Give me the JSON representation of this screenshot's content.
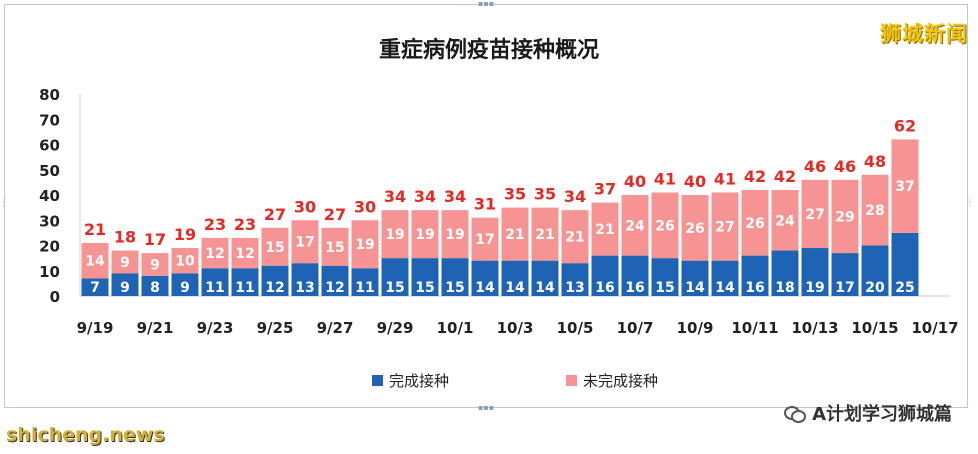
{
  "watermark_top": "狮城新闻",
  "footer_left": "shicheng.news",
  "footer_right": "A计划学习狮城篇",
  "colors": {
    "completed": "#1f63b5",
    "incomplete": "#f59493",
    "total_label": "#e32a25",
    "bar_text": "#ffffff"
  },
  "chart_data": {
    "type": "bar",
    "stacked": true,
    "title": "重症病例疫苗接种概况",
    "xlabel": "",
    "ylabel": "",
    "ylim": [
      0,
      80
    ],
    "y_ticks": [
      0,
      10,
      20,
      30,
      40,
      50,
      60,
      70,
      80
    ],
    "categories": [
      "9/19",
      "9/20",
      "9/21",
      "9/22",
      "9/23",
      "9/24",
      "9/25",
      "9/26",
      "9/27",
      "9/28",
      "9/29",
      "9/30",
      "10/1",
      "10/2",
      "10/3",
      "10/4",
      "10/5",
      "10/6",
      "10/7",
      "10/8",
      "10/9",
      "10/10",
      "10/11",
      "10/12",
      "10/13",
      "10/14",
      "10/15",
      "10/16",
      "10/17"
    ],
    "x_tick_labels": [
      "9/19",
      "9/21",
      "9/23",
      "9/25",
      "9/27",
      "9/29",
      "10/1",
      "10/3",
      "10/5",
      "10/7",
      "10/9",
      "10/11",
      "10/13",
      "10/15",
      "10/17"
    ],
    "series": [
      {
        "name": "完成接种",
        "values": [
          7,
          9,
          8,
          9,
          11,
          11,
          12,
          13,
          12,
          11,
          15,
          15,
          15,
          14,
          14,
          14,
          13,
          16,
          16,
          15,
          14,
          14,
          16,
          18,
          19,
          17,
          20,
          25,
          null
        ]
      },
      {
        "name": "未完成接种",
        "values": [
          14,
          9,
          9,
          10,
          12,
          12,
          15,
          17,
          15,
          19,
          19,
          19,
          19,
          17,
          21,
          21,
          21,
          21,
          24,
          26,
          26,
          27,
          26,
          24,
          27,
          29,
          28,
          37,
          null
        ]
      }
    ],
    "totals": [
      21,
      18,
      17,
      19,
      23,
      23,
      27,
      30,
      27,
      30,
      34,
      34,
      34,
      31,
      35,
      35,
      34,
      37,
      40,
      41,
      40,
      41,
      42,
      42,
      46,
      46,
      48,
      62,
      null
    ],
    "legend": {
      "placement": "bottom",
      "items": [
        "完成接种",
        "未完成接种"
      ]
    },
    "grid": false
  }
}
